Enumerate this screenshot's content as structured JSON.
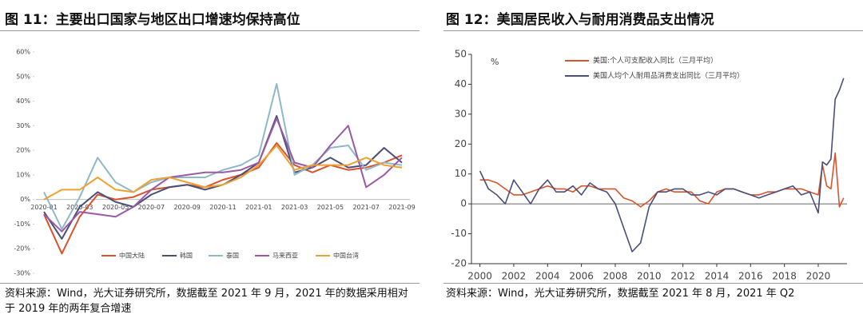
{
  "chart_data": [
    {
      "type": "line",
      "title": "图 11：主要出口国家与地区出口增速均保持高位",
      "source": "资料来源：Wind，光大证券研究所，数据截至 2021 年 9 月，2021 年的数据采用相对于 2019 年的两年复合增速",
      "categories": [
        "2020-01",
        null,
        "2020-03",
        null,
        "2020-05",
        null,
        "2020-07",
        null,
        "2020-09",
        null,
        "2020-11",
        null,
        "2021-01",
        null,
        "2021-03",
        null,
        "2021-05",
        null,
        "2021-07",
        null,
        "2021-09"
      ],
      "series": [
        {
          "name": "中国大陆",
          "color": "#d9532b",
          "values": [
            -6,
            -22,
            -7,
            2,
            0,
            1,
            4,
            5,
            6,
            5,
            8,
            10,
            13,
            23,
            14,
            11,
            14,
            12,
            13,
            15,
            18
          ]
        },
        {
          "name": "韩国",
          "color": "#4a4e78",
          "values": [
            -5,
            -16,
            -3,
            3,
            -1,
            -3,
            2,
            5,
            6,
            4,
            6,
            10,
            15,
            34,
            11,
            13,
            17,
            13,
            14,
            21,
            15
          ]
        },
        {
          "name": "泰国",
          "color": "#8fb8c9",
          "values": [
            3,
            -12,
            1,
            17,
            7,
            3,
            7,
            9,
            9,
            9,
            12,
            14,
            18,
            47,
            10,
            14,
            21,
            22,
            12,
            15,
            14
          ]
        },
        {
          "name": "马来西亚",
          "color": "#9b59a6",
          "values": [
            -6,
            -13,
            -5,
            -6,
            -7,
            -3,
            4,
            9,
            10,
            11,
            11,
            12,
            15,
            33,
            15,
            13,
            22,
            30,
            5,
            10,
            17
          ]
        },
        {
          "name": "中国台湾",
          "color": "#f0a030",
          "values": [
            0,
            4,
            4,
            9,
            4,
            3,
            8,
            9,
            7,
            5,
            6,
            9,
            14,
            22,
            12,
            14,
            14,
            14,
            17,
            14,
            13
          ]
        }
      ],
      "ylim": [
        -30,
        60
      ],
      "yticks": [
        {
          "value": -30,
          "label": "-30%"
        },
        {
          "value": -20,
          "label": "-20%"
        },
        {
          "value": -10,
          "label": "-10%"
        },
        {
          "value": 0,
          "label": "0%"
        },
        {
          "value": 10,
          "label": "10%"
        },
        {
          "value": 20,
          "label": "20%"
        },
        {
          "value": 30,
          "label": "30%"
        },
        {
          "value": 40,
          "label": "40%"
        },
        {
          "value": 50,
          "label": "50%"
        },
        {
          "value": 60,
          "label": "60%"
        }
      ],
      "legend": "bottom"
    },
    {
      "type": "line",
      "title": "图 12：美国居民收入与耐用消费品支出情况",
      "source": "资料来源：Wind，光大证券研究所，数据截至 2021 年 8 月，2021 年 Q2",
      "unit": "%",
      "x": [
        2000,
        2000.5,
        2001,
        2001.5,
        2002,
        2002.5,
        2003,
        2003.5,
        2004,
        2004.5,
        2005,
        2005.5,
        2006,
        2006.5,
        2007,
        2007.5,
        2008,
        2008.5,
        2009,
        2009.5,
        2010,
        2010.5,
        2011,
        2011.5,
        2012,
        2012.5,
        2013,
        2013.5,
        2014,
        2014.5,
        2015,
        2015.5,
        2016,
        2016.5,
        2017,
        2017.5,
        2018,
        2018.5,
        2019,
        2019.5,
        2020,
        2020.25,
        2020.5,
        2020.75,
        2021,
        2021.25,
        2021.5
      ],
      "series": [
        {
          "name": "美国:个人可支配收入同比（三月平均）",
          "color": "#d9532b",
          "values": [
            8,
            8,
            7,
            5,
            3,
            3,
            4,
            5,
            6,
            5,
            5,
            4,
            6,
            6,
            5,
            5,
            5,
            2,
            1,
            -1,
            1,
            4,
            5,
            4,
            4,
            4,
            1,
            0,
            4,
            5,
            5,
            4,
            3,
            3,
            4,
            4,
            5,
            5,
            5,
            4,
            3,
            13,
            6,
            5,
            17,
            -1,
            2
          ]
        },
        {
          "name": "美国人均个人耐用品消费支出同比（三月平均）",
          "color": "#4a4e78",
          "values": [
            11,
            5,
            3,
            0,
            8,
            4,
            0,
            5,
            8,
            4,
            4,
            6,
            3,
            7,
            5,
            4,
            0,
            -8,
            -16,
            -13,
            -1,
            4,
            4,
            5,
            5,
            3,
            3,
            4,
            3,
            5,
            5,
            4,
            3,
            2,
            3,
            4,
            5,
            6,
            3,
            4,
            -3,
            14,
            13,
            15,
            35,
            38,
            42
          ]
        }
      ],
      "xlim": [
        1999.5,
        2021.7
      ],
      "xticks": [
        2000,
        2002,
        2004,
        2006,
        2008,
        2010,
        2012,
        2014,
        2016,
        2018,
        2020
      ],
      "ylim": [
        -20,
        50
      ],
      "yticks": [
        -20,
        -10,
        0,
        10,
        20,
        30,
        40,
        50
      ],
      "legend": "upper left"
    }
  ]
}
